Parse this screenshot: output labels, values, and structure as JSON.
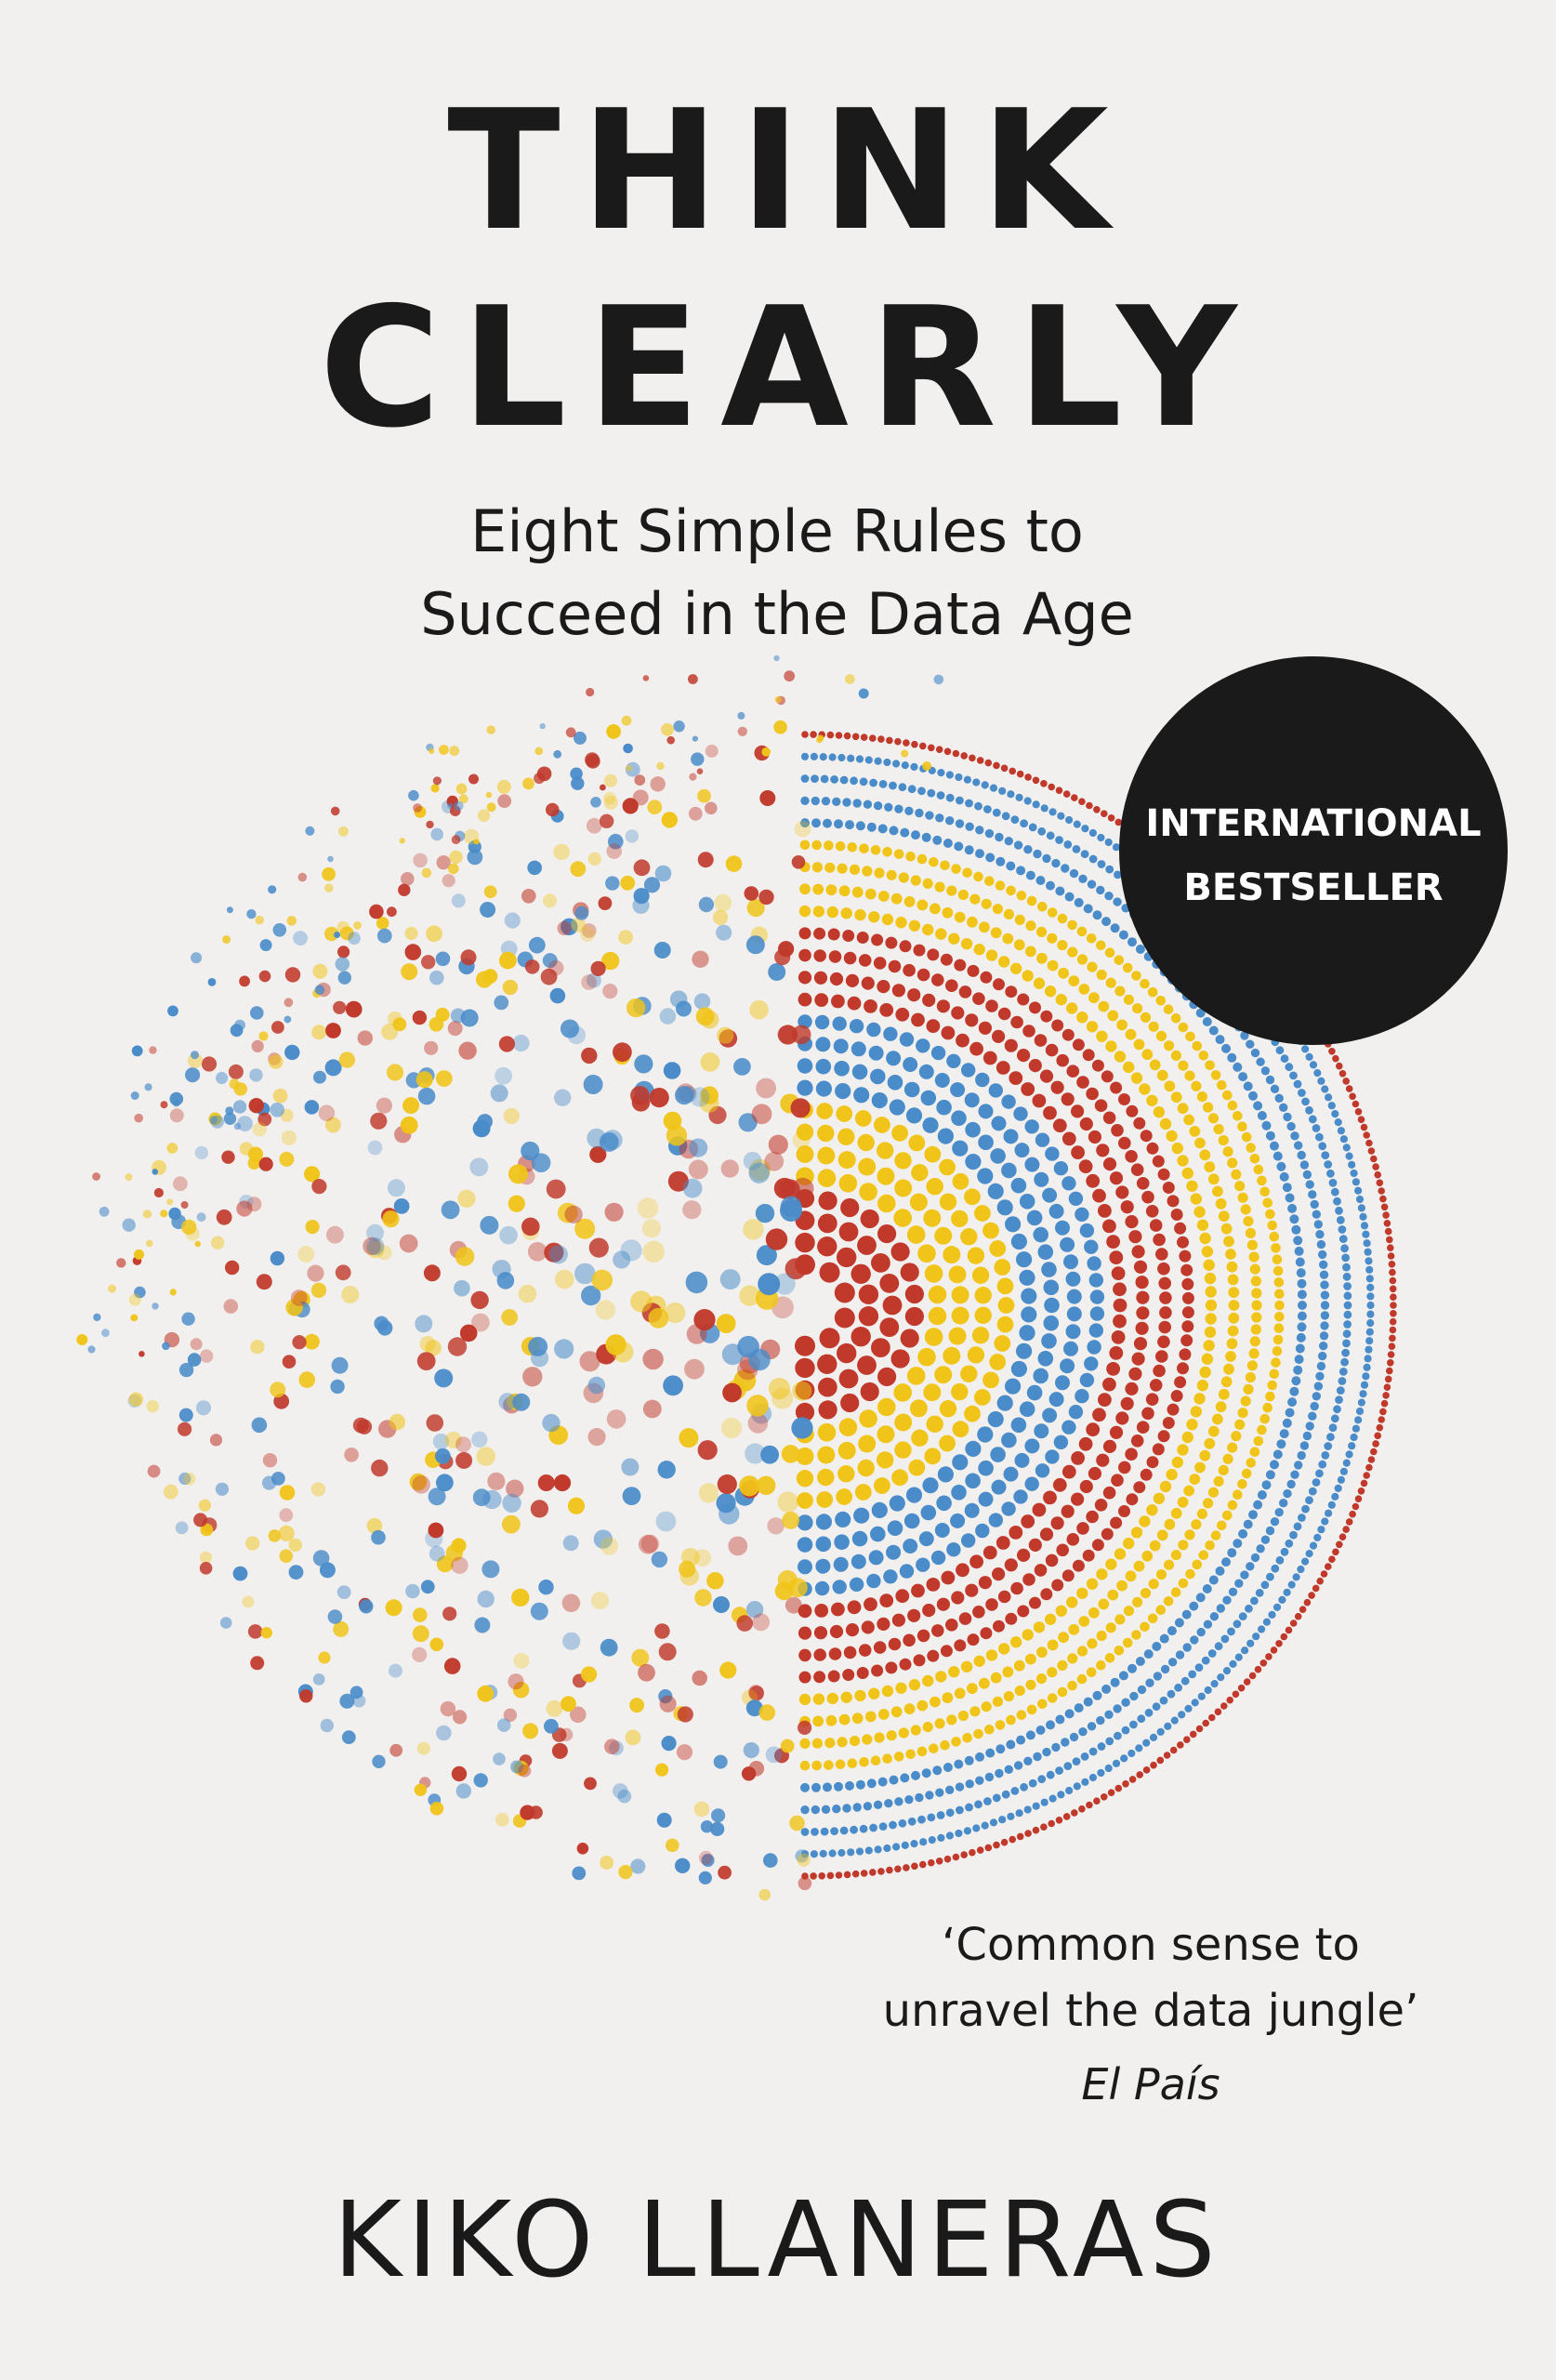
{
  "cover": {
    "title": [
      "THINK",
      "CLEARLY"
    ],
    "subtitle": [
      "Eight Simple Rules to",
      "Succeed in the Data Age"
    ],
    "badge": [
      "INTERNATIONAL",
      "BESTSELLER"
    ],
    "quote": [
      "‘Common sense to",
      "unravel the data jungle’"
    ],
    "quote_source": "El País",
    "author": "KIKO LLANERAS"
  }
}
